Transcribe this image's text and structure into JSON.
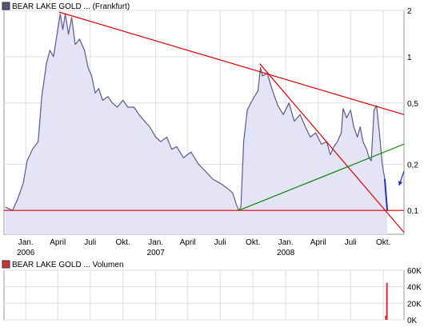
{
  "chart_data": [
    {
      "type": "area",
      "legend": {
        "label": "BEAR LAKE GOLD ... (Frankfurt)",
        "color": "#555577",
        "placement": "top-left"
      },
      "scale": "log",
      "ylim": [
        0.07,
        2
      ],
      "y_ticks": [
        {
          "value": 2,
          "label": "2"
        },
        {
          "value": 1,
          "label": "1"
        },
        {
          "value": 0.5,
          "label": "0,5"
        },
        {
          "value": 0.2,
          "label": "0,2"
        },
        {
          "value": 0.1,
          "label": "0,1"
        }
      ],
      "x_range": [
        "2005-11-01",
        "2008-11-28"
      ],
      "x_ticks": [
        {
          "date": "2006-01-01",
          "label": "Jan."
        },
        {
          "date": "2006-04-01",
          "label": "April"
        },
        {
          "date": "2006-07-01",
          "label": "Juli"
        },
        {
          "date": "2006-10-01",
          "label": "Okt."
        },
        {
          "date": "2007-01-01",
          "label": "Jan."
        },
        {
          "date": "2007-04-01",
          "label": "April"
        },
        {
          "date": "2007-07-01",
          "label": "Juli"
        },
        {
          "date": "2007-10-01",
          "label": "Okt."
        },
        {
          "date": "2008-01-01",
          "label": "Jan."
        },
        {
          "date": "2008-04-01",
          "label": "April"
        },
        {
          "date": "2008-07-01",
          "label": "Juli"
        },
        {
          "date": "2008-10-01",
          "label": "Okt."
        }
      ],
      "year_labels": [
        {
          "date": "2006-01-01",
          "label": "2006"
        },
        {
          "date": "2007-01-01",
          "label": "2007"
        },
        {
          "date": "2008-01-01",
          "label": "2008"
        }
      ],
      "grid": true,
      "colors": {
        "line": "#5a5a8c",
        "fill": "#e4e4f6",
        "trend_red": "#dd0000",
        "trend_green": "#008800",
        "arrow": "#2233bb"
      },
      "series": [
        {
          "points": [
            [
              "2005-11-05",
              0.105
            ],
            [
              "2005-11-25",
              0.1
            ],
            [
              "2005-12-10",
              0.12
            ],
            [
              "2005-12-25",
              0.15
            ],
            [
              "2006-01-05",
              0.21
            ],
            [
              "2006-01-20",
              0.25
            ],
            [
              "2006-02-05",
              0.28
            ],
            [
              "2006-02-15",
              0.55
            ],
            [
              "2006-02-28",
              0.9
            ],
            [
              "2006-03-10",
              1.1
            ],
            [
              "2006-03-20",
              1.0
            ],
            [
              "2006-04-01",
              1.5
            ],
            [
              "2006-04-08",
              1.9
            ],
            [
              "2006-04-15",
              1.5
            ],
            [
              "2006-04-22",
              1.9
            ],
            [
              "2006-05-01",
              1.4
            ],
            [
              "2006-05-10",
              1.8
            ],
            [
              "2006-05-20",
              1.2
            ],
            [
              "2006-06-01",
              1.3
            ],
            [
              "2006-06-15",
              1.1
            ],
            [
              "2006-06-25",
              0.85
            ],
            [
              "2006-07-05",
              0.75
            ],
            [
              "2006-07-15",
              0.58
            ],
            [
              "2006-07-25",
              0.62
            ],
            [
              "2006-08-05",
              0.52
            ],
            [
              "2006-08-20",
              0.55
            ],
            [
              "2006-09-01",
              0.5
            ],
            [
              "2006-09-15",
              0.47
            ],
            [
              "2006-10-01",
              0.52
            ],
            [
              "2006-10-15",
              0.47
            ],
            [
              "2006-11-01",
              0.47
            ],
            [
              "2006-11-15",
              0.42
            ],
            [
              "2006-12-01",
              0.38
            ],
            [
              "2006-12-15",
              0.35
            ],
            [
              "2007-01-01",
              0.3
            ],
            [
              "2007-01-15",
              0.28
            ],
            [
              "2007-02-01",
              0.3
            ],
            [
              "2007-02-15",
              0.25
            ],
            [
              "2007-03-01",
              0.26
            ],
            [
              "2007-03-20",
              0.22
            ],
            [
              "2007-04-10",
              0.24
            ],
            [
              "2007-05-01",
              0.2
            ],
            [
              "2007-05-20",
              0.18
            ],
            [
              "2007-06-10",
              0.16
            ],
            [
              "2007-07-01",
              0.15
            ],
            [
              "2007-07-20",
              0.14
            ],
            [
              "2007-08-05",
              0.13
            ],
            [
              "2007-08-15",
              0.11
            ],
            [
              "2007-08-22",
              0.1
            ],
            [
              "2007-08-28",
              0.105
            ],
            [
              "2007-09-05",
              0.28
            ],
            [
              "2007-09-15",
              0.45
            ],
            [
              "2007-09-25",
              0.5
            ],
            [
              "2007-10-05",
              0.55
            ],
            [
              "2007-10-15",
              0.6
            ],
            [
              "2007-10-22",
              0.85
            ],
            [
              "2007-10-28",
              0.75
            ],
            [
              "2007-11-10",
              0.78
            ],
            [
              "2007-11-25",
              0.6
            ],
            [
              "2007-12-10",
              0.48
            ],
            [
              "2007-12-25",
              0.42
            ],
            [
              "2008-01-10",
              0.5
            ],
            [
              "2008-01-25",
              0.38
            ],
            [
              "2008-02-10",
              0.42
            ],
            [
              "2008-02-25",
              0.35
            ],
            [
              "2008-03-10",
              0.3
            ],
            [
              "2008-03-25",
              0.32
            ],
            [
              "2008-04-10",
              0.27
            ],
            [
              "2008-04-25",
              0.28
            ],
            [
              "2008-05-05",
              0.23
            ],
            [
              "2008-05-15",
              0.26
            ],
            [
              "2008-05-25",
              0.28
            ],
            [
              "2008-06-05",
              0.32
            ],
            [
              "2008-06-10",
              0.46
            ],
            [
              "2008-06-20",
              0.4
            ],
            [
              "2008-07-01",
              0.45
            ],
            [
              "2008-07-10",
              0.35
            ],
            [
              "2008-07-20",
              0.3
            ],
            [
              "2008-07-28",
              0.35
            ],
            [
              "2008-08-05",
              0.28
            ],
            [
              "2008-08-15",
              0.25
            ],
            [
              "2008-08-22",
              0.22
            ],
            [
              "2008-08-28",
              0.21
            ],
            [
              "2008-09-05",
              0.45
            ],
            [
              "2008-09-12",
              0.48
            ],
            [
              "2008-09-20",
              0.32
            ],
            [
              "2008-09-28",
              0.2
            ],
            [
              "2008-10-05",
              0.16
            ],
            [
              "2008-10-12",
              0.1
            ]
          ]
        }
      ],
      "trend_lines": [
        {
          "color": "#dd0000",
          "from": [
            "2006-04-05",
            1.95
          ],
          "to": [
            "2008-11-28",
            0.42
          ]
        },
        {
          "color": "#dd0000",
          "from": [
            "2007-10-20",
            0.9
          ],
          "to": [
            "2008-11-28",
            0.072
          ]
        },
        {
          "color": "#dd0000",
          "from": [
            "2005-11-01",
            0.1
          ],
          "to": [
            "2008-11-28",
            0.1
          ]
        },
        {
          "color": "#008800",
          "from": [
            "2007-08-22",
            0.1
          ],
          "to": [
            "2008-11-28",
            0.27
          ]
        }
      ],
      "annotation_arrow": {
        "color": "#2233bb",
        "from": [
          "2008-11-28",
          0.18
        ],
        "to": [
          "2008-11-14",
          0.145
        ]
      },
      "end_marker": {
        "color": "#2233bb",
        "from": [
          "2008-10-05",
          0.16
        ],
        "to": [
          "2008-10-12",
          0.1
        ]
      }
    },
    {
      "type": "bar",
      "legend": {
        "label": "BEAR LAKE GOLD ... Volumen",
        "color": "#cc3333",
        "placement": "top-left"
      },
      "ylim": [
        0,
        60000
      ],
      "y_ticks": [
        {
          "value": 60000,
          "label": "60K"
        },
        {
          "value": 40000,
          "label": "40K"
        },
        {
          "value": 20000,
          "label": "20K"
        },
        {
          "value": 0,
          "label": "0K"
        }
      ],
      "grid": true,
      "bars": [
        {
          "date": "2008-10-08",
          "value": 5000
        },
        {
          "date": "2008-10-11",
          "value": 45000
        }
      ]
    }
  ]
}
